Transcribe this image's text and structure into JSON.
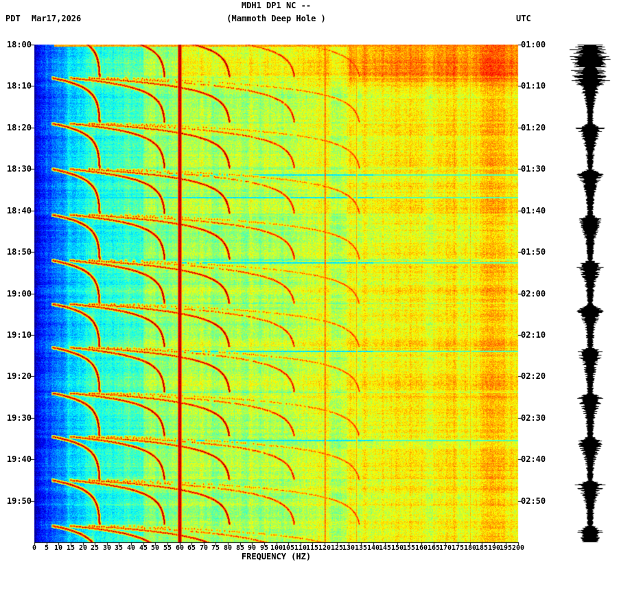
{
  "header": {
    "title": "MDH1 DP1 NC --",
    "subtitle": "(Mammoth Deep Hole )",
    "tz_left": "PDT",
    "date": "Mar17,2026",
    "tz_right": "UTC"
  },
  "chart_data": {
    "type": "heatmap",
    "subtype": "seismic-spectrogram",
    "title": "MDH1 DP1 NC --",
    "subtitle": "(Mammoth Deep Hole )",
    "xlabel": "FREQUENCY (HZ)",
    "x_range_hz": [
      0,
      200
    ],
    "x_ticks": [
      0,
      5,
      10,
      15,
      20,
      25,
      30,
      35,
      40,
      45,
      50,
      55,
      60,
      65,
      70,
      75,
      80,
      85,
      90,
      95,
      100,
      105,
      110,
      115,
      120,
      125,
      130,
      135,
      140,
      145,
      150,
      155,
      160,
      165,
      170,
      175,
      180,
      185,
      190,
      195,
      200
    ],
    "time_axis_left_tz": "PDT",
    "time_axis_right_tz": "UTC",
    "date": "Mar17,2026",
    "time_span_minutes": 120,
    "left_time_labels": [
      "18:00",
      "18:10",
      "18:20",
      "18:30",
      "18:40",
      "18:50",
      "19:00",
      "19:10",
      "19:20",
      "19:30",
      "19:40",
      "19:50"
    ],
    "right_time_labels": [
      "01:00",
      "01:10",
      "01:20",
      "01:30",
      "01:40",
      "01:50",
      "02:00",
      "02:10",
      "02:20",
      "02:30",
      "02:40",
      "02:50"
    ],
    "colormap": "jet",
    "powerline_hz": 60,
    "powerline_harmonic_lines_hz": [
      120,
      133,
      180
    ],
    "quiet_row_minutes": [
      31.3,
      36.8,
      52.5,
      73.8,
      95.3
    ],
    "fundamental": {
      "asymptote_hz": 27,
      "onset_dip": 0.72,
      "tau_min": 2.2,
      "harmonics": 5
    },
    "events": [
      {
        "start_min": -3,
        "duration_min": 10.6
      },
      {
        "start_min": 8,
        "duration_min": 10.6
      },
      {
        "start_min": 19,
        "duration_min": 10.6
      },
      {
        "start_min": 30,
        "duration_min": 10.6
      },
      {
        "start_min": 41,
        "duration_min": 10.6
      },
      {
        "start_min": 52,
        "duration_min": 10.2
      },
      {
        "start_min": 62.5,
        "duration_min": 10.2
      },
      {
        "start_min": 73,
        "duration_min": 10.6
      },
      {
        "start_min": 84,
        "duration_min": 10.2
      },
      {
        "start_min": 94.5,
        "duration_min": 10.2
      },
      {
        "start_min": 105,
        "duration_min": 10.6
      },
      {
        "start_min": 116,
        "duration_min": 10.6
      }
    ],
    "side_trace": {
      "label": "seismogram-amplitude-trace"
    }
  }
}
